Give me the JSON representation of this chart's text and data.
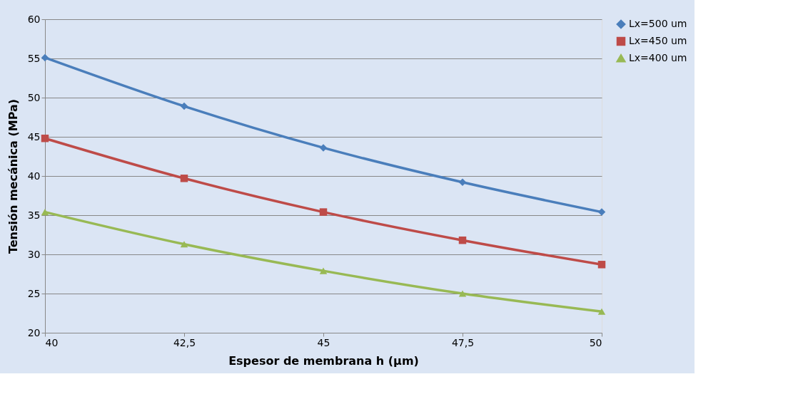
{
  "chart_data": {
    "type": "line",
    "xlabel": "Espesor de membrana h (µm)",
    "ylabel": "Tensión mecánica (MPa)",
    "x": [
      40,
      42.5,
      45,
      47.5,
      50
    ],
    "series": [
      {
        "name": "Lx=500 um",
        "color": "#4a7ebb",
        "marker": "diamond",
        "values": [
          55.1,
          48.9,
          43.6,
          39.2,
          35.4
        ]
      },
      {
        "name": "Lx=450 um",
        "color": "#be4b48",
        "marker": "square",
        "values": [
          44.8,
          39.7,
          35.4,
          31.8,
          28.7
        ]
      },
      {
        "name": "Lx=400 um",
        "color": "#98b954",
        "marker": "triangle",
        "values": [
          35.4,
          31.3,
          27.9,
          25.0,
          22.7
        ]
      }
    ],
    "xlim": [
      40,
      50
    ],
    "xticks": [
      40,
      {
        "value": 42.5,
        "label": "42,5"
      },
      45,
      {
        "value": 47.5,
        "label": "47,5"
      },
      50
    ],
    "ylim": [
      20,
      60
    ],
    "yticks": [
      20,
      25,
      30,
      35,
      40,
      45,
      50,
      55,
      60
    ],
    "grid": "y",
    "legend": "right",
    "line_style": "solid"
  }
}
